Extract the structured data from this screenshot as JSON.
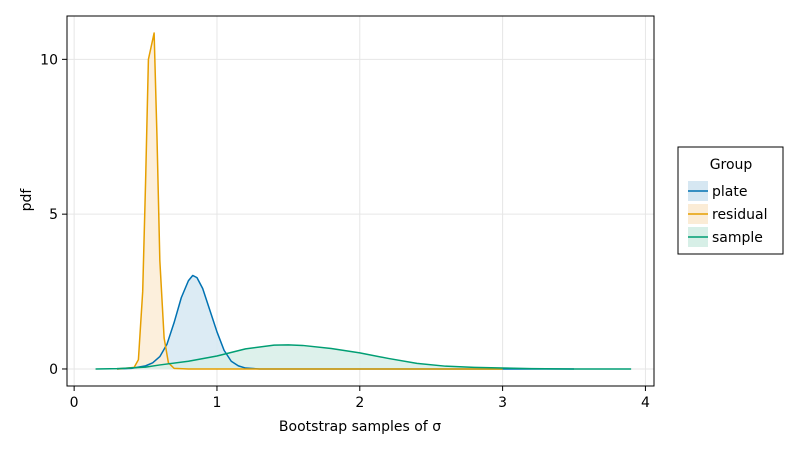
{
  "chart_data": {
    "type": "area",
    "title": "",
    "xlabel": "Bootstrap samples of σ",
    "ylabel": "pdf",
    "xlim": [
      -0.05,
      4.06
    ],
    "ylim": [
      -0.55,
      11.4
    ],
    "xticks": [
      0,
      1,
      2,
      3,
      4
    ],
    "yticks": [
      0,
      5,
      10
    ],
    "grid": true,
    "legend": {
      "title": "Group",
      "position": "right"
    },
    "series": [
      {
        "name": "plate",
        "color": "#0072b2",
        "fill": "#d6e7f2",
        "points": [
          [
            0.3,
            0.0
          ],
          [
            0.4,
            0.02
          ],
          [
            0.5,
            0.1
          ],
          [
            0.55,
            0.2
          ],
          [
            0.6,
            0.4
          ],
          [
            0.65,
            0.8
          ],
          [
            0.7,
            1.5
          ],
          [
            0.75,
            2.3
          ],
          [
            0.8,
            2.85
          ],
          [
            0.83,
            3.02
          ],
          [
            0.86,
            2.95
          ],
          [
            0.9,
            2.6
          ],
          [
            0.95,
            1.9
          ],
          [
            1.0,
            1.2
          ],
          [
            1.05,
            0.6
          ],
          [
            1.1,
            0.25
          ],
          [
            1.15,
            0.1
          ],
          [
            1.2,
            0.03
          ],
          [
            1.3,
            0.0
          ],
          [
            3.5,
            0.0
          ]
        ]
      },
      {
        "name": "residual",
        "color": "#e69f00",
        "fill": "#fbecd6",
        "points": [
          [
            0.3,
            0.0
          ],
          [
            0.42,
            0.05
          ],
          [
            0.45,
            0.3
          ],
          [
            0.48,
            2.5
          ],
          [
            0.5,
            6.0
          ],
          [
            0.52,
            10.0
          ],
          [
            0.56,
            10.85
          ],
          [
            0.58,
            7.5
          ],
          [
            0.6,
            3.5
          ],
          [
            0.63,
            1.0
          ],
          [
            0.66,
            0.2
          ],
          [
            0.7,
            0.02
          ],
          [
            0.8,
            0.0
          ],
          [
            3.0,
            0.0
          ]
        ]
      },
      {
        "name": "sample",
        "color": "#009e73",
        "fill": "#d7efe7",
        "points": [
          [
            0.15,
            0.0
          ],
          [
            0.3,
            0.01
          ],
          [
            0.5,
            0.06
          ],
          [
            0.6,
            0.13
          ],
          [
            0.8,
            0.25
          ],
          [
            1.0,
            0.42
          ],
          [
            1.2,
            0.65
          ],
          [
            1.4,
            0.77
          ],
          [
            1.5,
            0.78
          ],
          [
            1.6,
            0.76
          ],
          [
            1.8,
            0.66
          ],
          [
            2.0,
            0.52
          ],
          [
            2.2,
            0.34
          ],
          [
            2.4,
            0.18
          ],
          [
            2.6,
            0.09
          ],
          [
            2.8,
            0.05
          ],
          [
            3.0,
            0.03
          ],
          [
            3.2,
            0.01
          ],
          [
            3.5,
            0.0
          ],
          [
            3.9,
            0.0
          ]
        ]
      }
    ]
  }
}
